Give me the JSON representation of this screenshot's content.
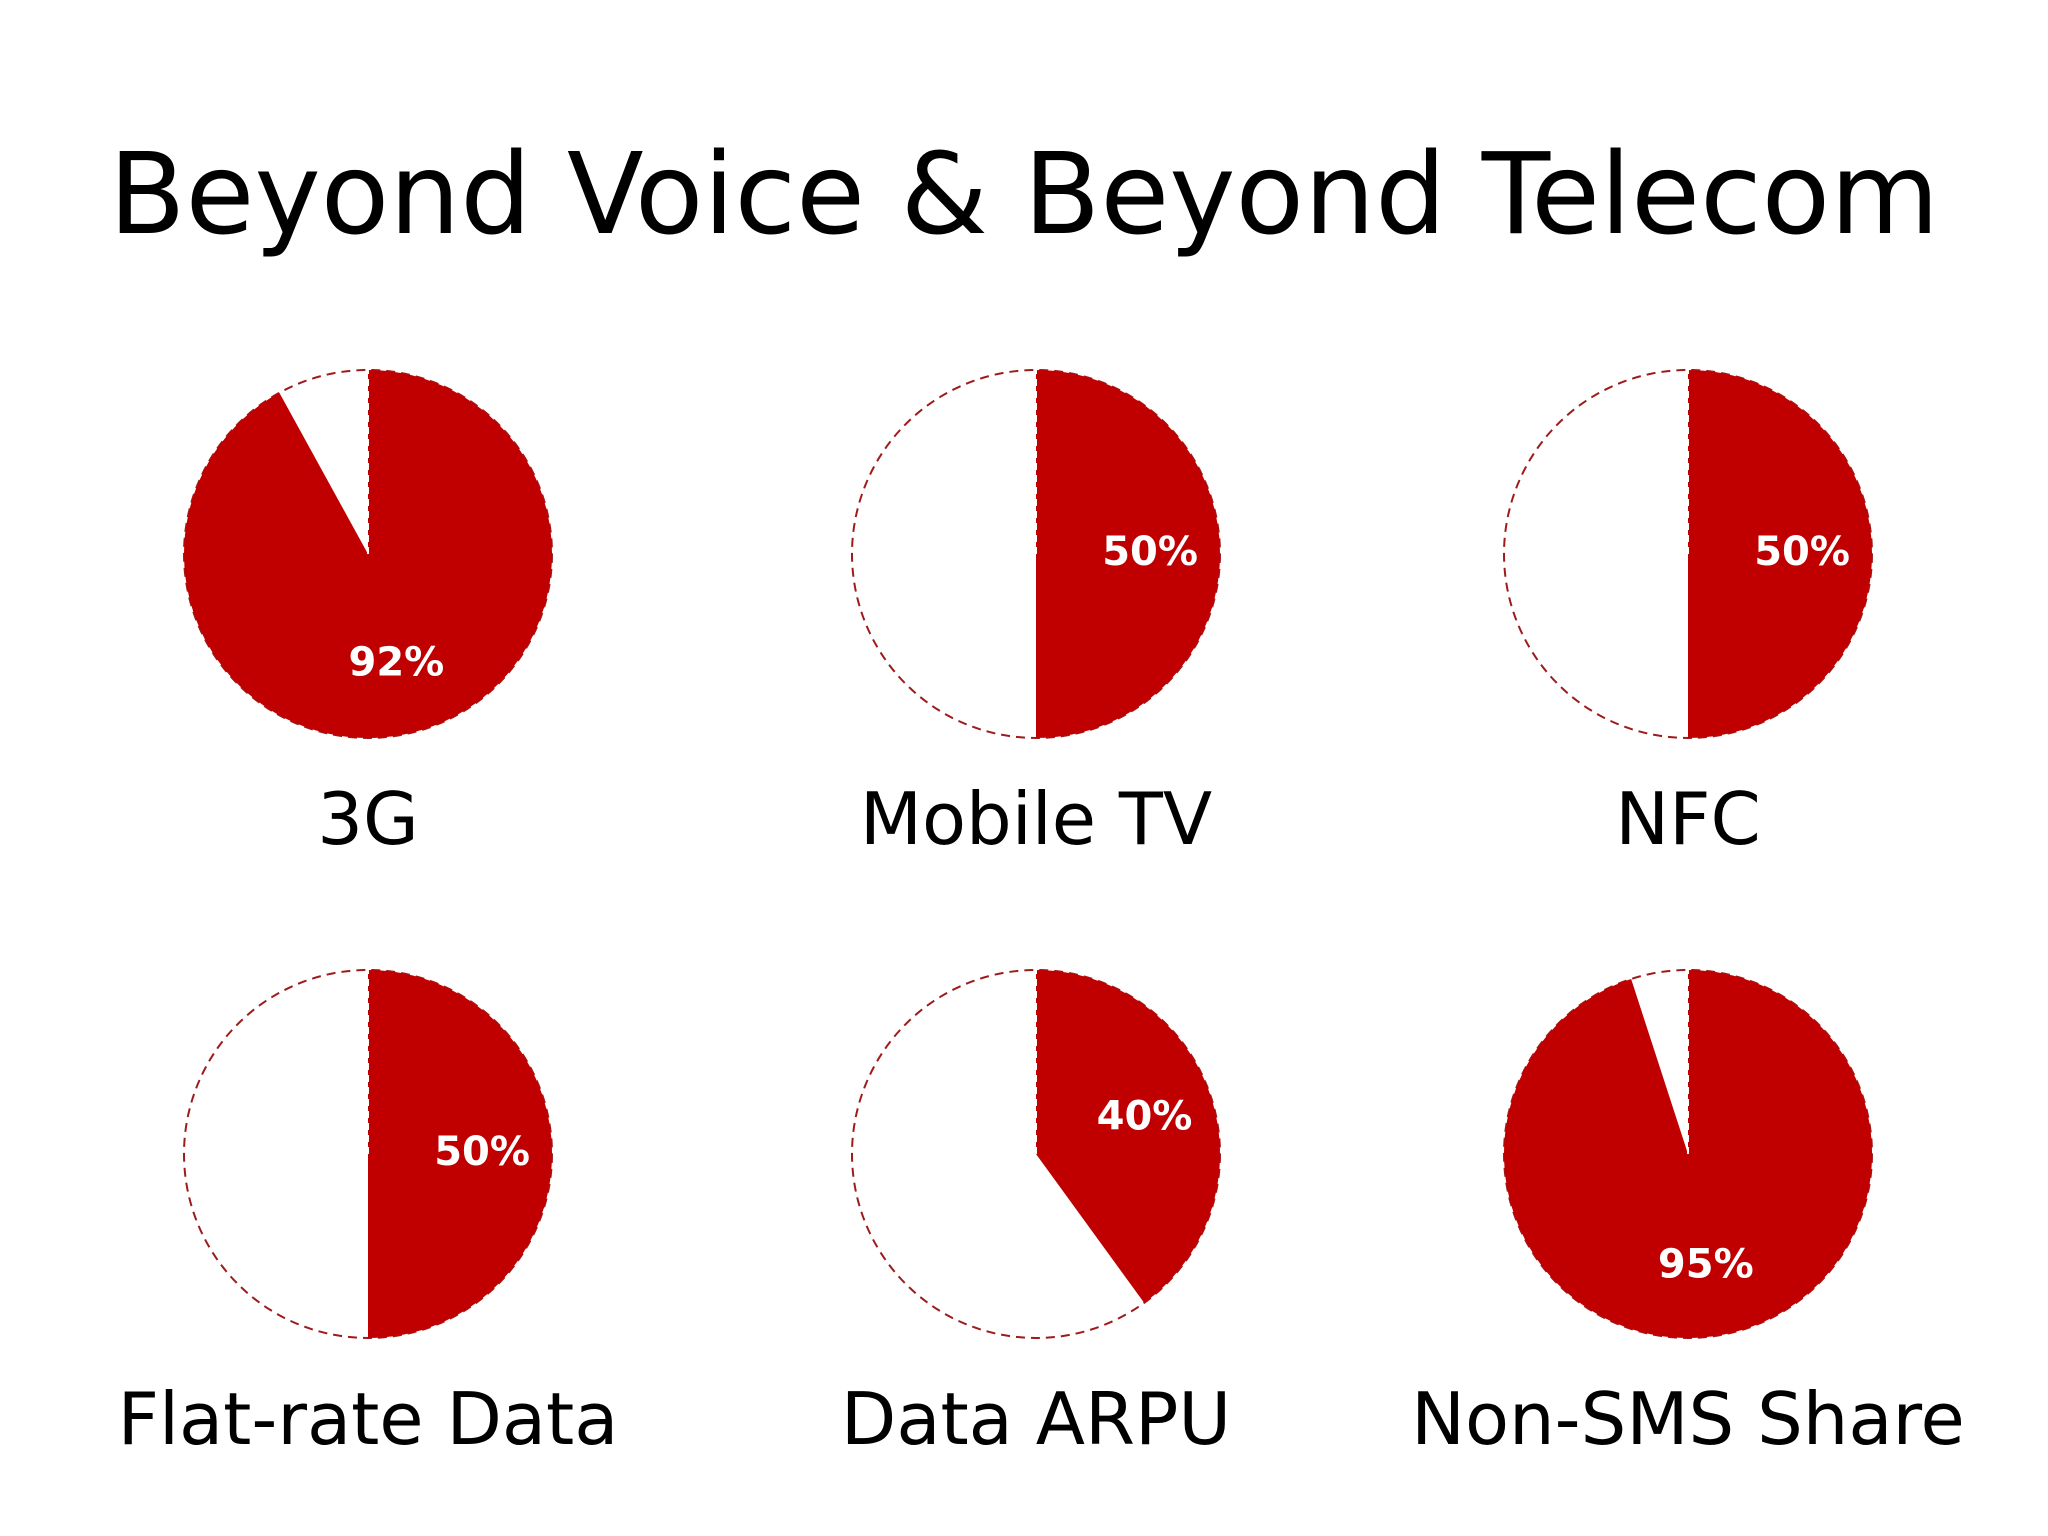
{
  "title": "Beyond Voice & Beyond Telecom",
  "colors": {
    "fill": "#c00000",
    "empty_outline": "#9e1b1b",
    "background": "#ffffff",
    "value_text": "#ffffff"
  },
  "chart_data": [
    {
      "type": "pie",
      "label": "3G",
      "value": 92,
      "value_label": "92%"
    },
    {
      "type": "pie",
      "label": "Mobile TV",
      "value": 50,
      "value_label": "50%"
    },
    {
      "type": "pie",
      "label": "NFC",
      "value": 50,
      "value_label": "50%"
    },
    {
      "type": "pie",
      "label": "Flat-rate Data",
      "value": 50,
      "value_label": "50%"
    },
    {
      "type": "pie",
      "label": "Data ARPU",
      "value": 40,
      "value_label": "40%"
    },
    {
      "type": "pie",
      "label": "Non-SMS Share",
      "value": 95,
      "value_label": "95%"
    }
  ]
}
